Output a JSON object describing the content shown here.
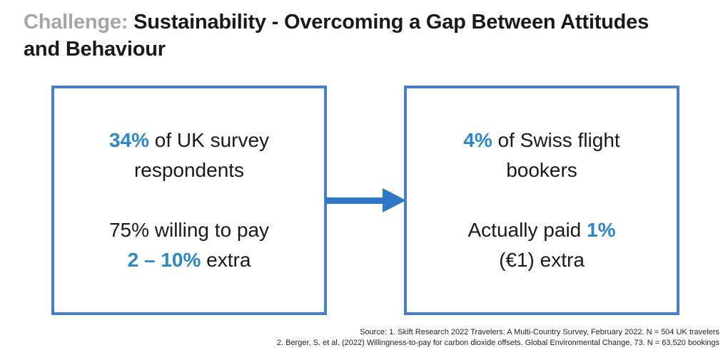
{
  "slide_title": {
    "prefix": "Challenge: ",
    "main": "Sustainability - Overcoming a Gap Between Attitudes and Behaviour"
  },
  "left_box": {
    "line1_em": "34%",
    "line1_rest": " of UK survey",
    "line2": "respondents",
    "line3": "75% willing to pay",
    "line4_em": "2 – 10%",
    "line4_rest": " extra"
  },
  "right_box": {
    "line1_em": "4%",
    "line1_rest": " of Swiss flight",
    "line2": "bookers",
    "line3_pre": "Actually paid ",
    "line3_em": "1%",
    "line4": "(€1) extra"
  },
  "source": {
    "line1": "Source: 1. Skift Research 2022 Travelers: A Multi-Country Survey, February 2022. N = 504 UK travelers",
    "line2": "2. Berger, S. et al. (2022) Willingness-to-pay for carbon dioxide offsets. Global Environmental Change, 73. N = 63,520 bookings"
  },
  "colors": {
    "accent_blue_text": "#2E86C9",
    "box_border_blue": "#4A7EC2",
    "arrow_blue": "#2E79C5",
    "title_gray": "#A6A6A6",
    "text_black": "#1A1A1A"
  }
}
